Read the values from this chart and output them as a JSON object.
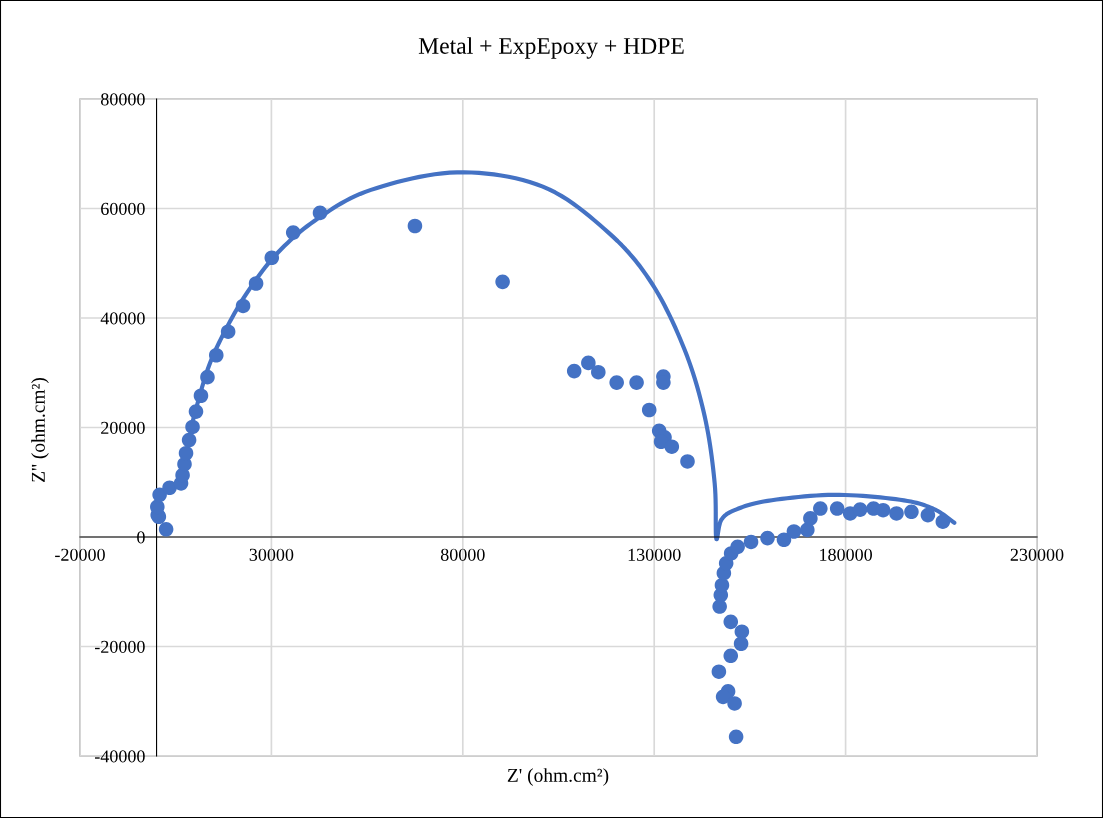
{
  "chart_data": {
    "type": "scatter",
    "title": "Metal + ExpEpoxy + HDPE",
    "xlabel": "Z' (ohm.cm²)",
    "ylabel": "Z'' (ohm.cm²)",
    "xlim": [
      -20000,
      230000
    ],
    "xticks": [
      -20000,
      30000,
      80000,
      130000,
      180000,
      230000
    ],
    "ylim": [
      -40000,
      80000
    ],
    "yticks": [
      -40000,
      -20000,
      0,
      20000,
      40000,
      60000,
      80000
    ],
    "grid": true,
    "legend": false,
    "marker": "circle",
    "series": [
      {
        "color": "#4472c4",
        "x": [
          2500,
          300,
          600,
          200,
          800,
          3400,
          6400,
          6800,
          7300,
          7700,
          8500,
          9400,
          10300,
          11600,
          13300,
          15600,
          18700,
          22600,
          26000,
          30100,
          35700,
          42700,
          67500,
          90400,
          109100,
          112800,
          115400,
          120200,
          125400,
          132400,
          132400,
          128700,
          131300,
          132700,
          131800,
          134600,
          138700,
          147400,
          147700,
          148200,
          148800,
          150100,
          151800,
          155300,
          159600,
          163900,
          166500,
          170000,
          170800,
          173400,
          177800,
          181200,
          183800,
          187300,
          189800,
          193300,
          197200,
          201500,
          205400,
          147100,
          150000,
          152900,
          152700,
          150000,
          146900,
          149300,
          148000,
          151000,
          151400
        ],
        "values": [
          1400,
          4000,
          3700,
          5500,
          7700,
          9000,
          9800,
          11300,
          13300,
          15300,
          17700,
          20100,
          22900,
          25800,
          29200,
          33200,
          37500,
          42200,
          46300,
          51000,
          55600,
          59200,
          56800,
          46600,
          30300,
          31800,
          30100,
          28200,
          28200,
          29300,
          28200,
          23200,
          19400,
          18200,
          17400,
          16500,
          13800,
          -10600,
          -8800,
          -6600,
          -4800,
          -3000,
          -1800,
          -900,
          -200,
          -500,
          1000,
          1300,
          3400,
          5200,
          5200,
          4300,
          5000,
          5200,
          4900,
          4300,
          4600,
          4000,
          2800,
          -12700,
          -15500,
          -17300,
          -19500,
          -21700,
          -24600,
          -28200,
          -29200,
          -30400,
          -36500
        ]
      },
      {
        "type": "line",
        "color": "#4472c4",
        "line_style": "solid",
        "marker": "none",
        "x": [
          9000,
          13300,
          18000,
          24100,
          31900,
          42200,
          56000,
          78500,
          100900,
          118200,
          129400,
          138000,
          143200,
          145800,
          146200,
          147500,
          151000,
          159600,
          176900,
          194200,
          202800,
          208400
        ],
        "values": [
          20000,
          30500,
          37800,
          45100,
          52100,
          58200,
          63400,
          66600,
          64000,
          55500,
          46300,
          34100,
          22000,
          9800,
          -200,
          3100,
          4900,
          6600,
          7700,
          6800,
          5200,
          2600
        ]
      }
    ]
  }
}
